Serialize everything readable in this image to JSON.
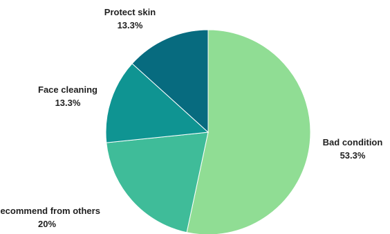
{
  "chart_data": {
    "type": "pie",
    "title": "",
    "slices": [
      {
        "label": "Bad condition",
        "value": 53.3,
        "value_label": "53.3%",
        "color": "#90dd94"
      },
      {
        "label": "Recommend from others",
        "value": 20,
        "value_label": "20%",
        "color": "#3fbc99"
      },
      {
        "label": "Face cleaning",
        "value": 13.3,
        "value_label": "13.3%",
        "color": "#0f9492"
      },
      {
        "label": "Protect skin",
        "value": 13.3,
        "value_label": "13.3%",
        "color": "#076b7f"
      }
    ],
    "legend": "none",
    "start_angle": "top, clockwise"
  }
}
